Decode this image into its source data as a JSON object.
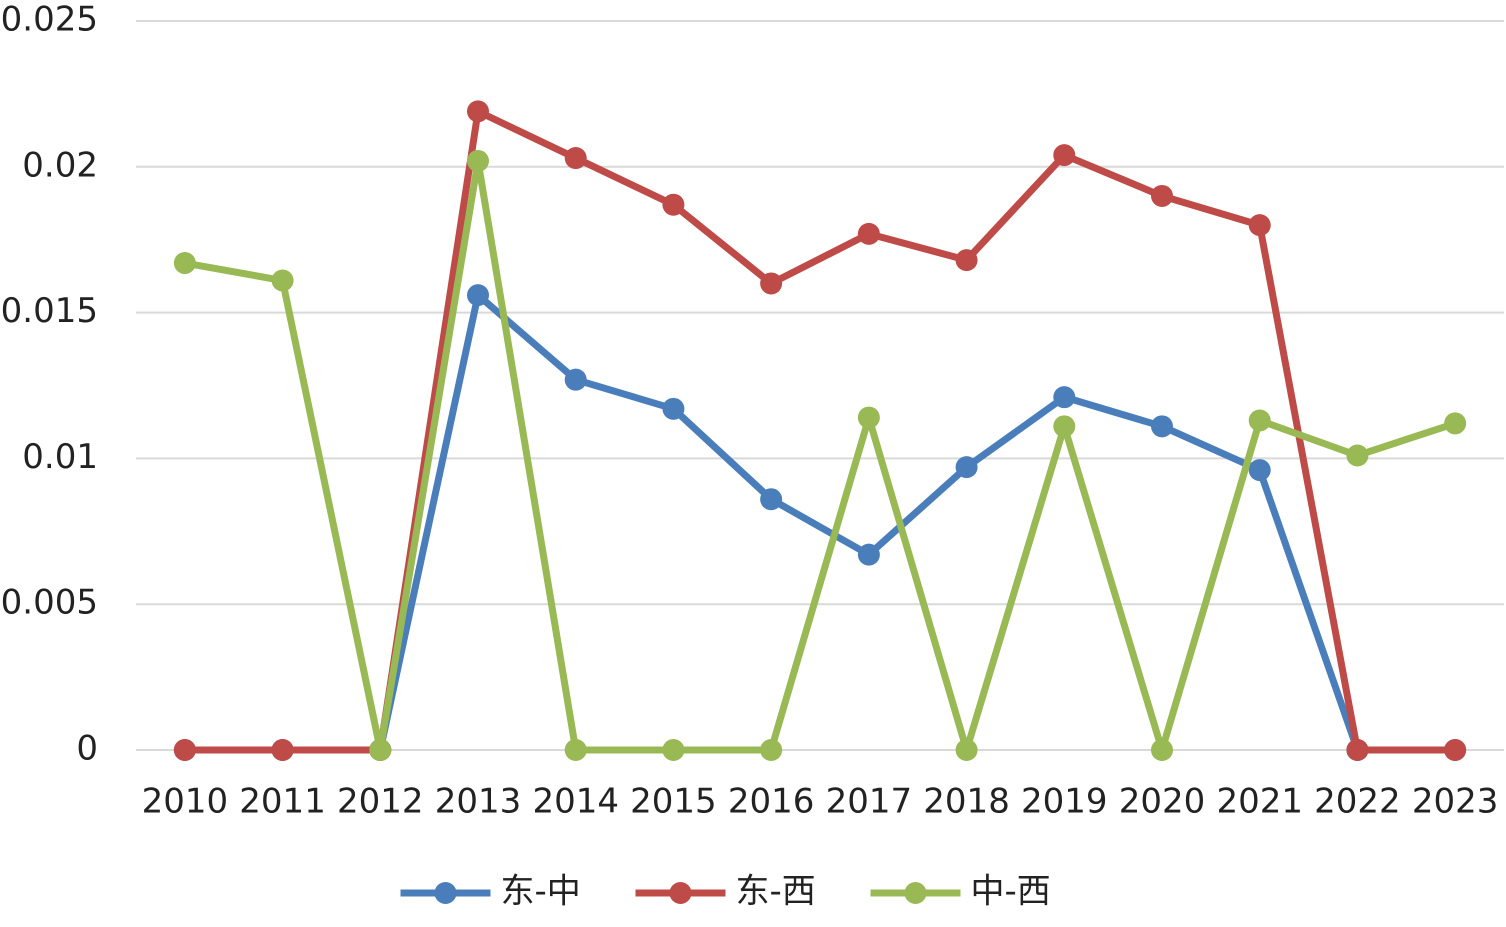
{
  "chart_data": {
    "type": "line",
    "categories": [
      "2010",
      "2011",
      "2012",
      "2013",
      "2014",
      "2015",
      "2016",
      "2017",
      "2018",
      "2019",
      "2020",
      "2021",
      "2022",
      "2023"
    ],
    "series": [
      {
        "name": "东-中",
        "color": "#4a7ebb",
        "values": [
          0,
          0,
          0,
          0.0156,
          0.0127,
          0.0117,
          0.0086,
          0.0067,
          0.0097,
          0.0121,
          0.0111,
          0.0096,
          0,
          0
        ]
      },
      {
        "name": "东-西",
        "color": "#be4b48",
        "values": [
          0,
          0,
          0,
          0.0219,
          0.0203,
          0.0187,
          0.016,
          0.0177,
          0.0168,
          0.0204,
          0.019,
          0.018,
          0,
          0
        ]
      },
      {
        "name": "中-西",
        "color": "#98b954",
        "values": [
          0.0167,
          0.0161,
          0,
          0.0202,
          0,
          0,
          0,
          0.0114,
          0,
          0.0111,
          0,
          0.0113,
          0.0101,
          0.0112
        ]
      }
    ],
    "ylim": [
      0,
      0.025
    ],
    "yticks": [
      0,
      0.005,
      0.01,
      0.015,
      0.02,
      0.025
    ],
    "grid": true,
    "legend": "bottom"
  }
}
